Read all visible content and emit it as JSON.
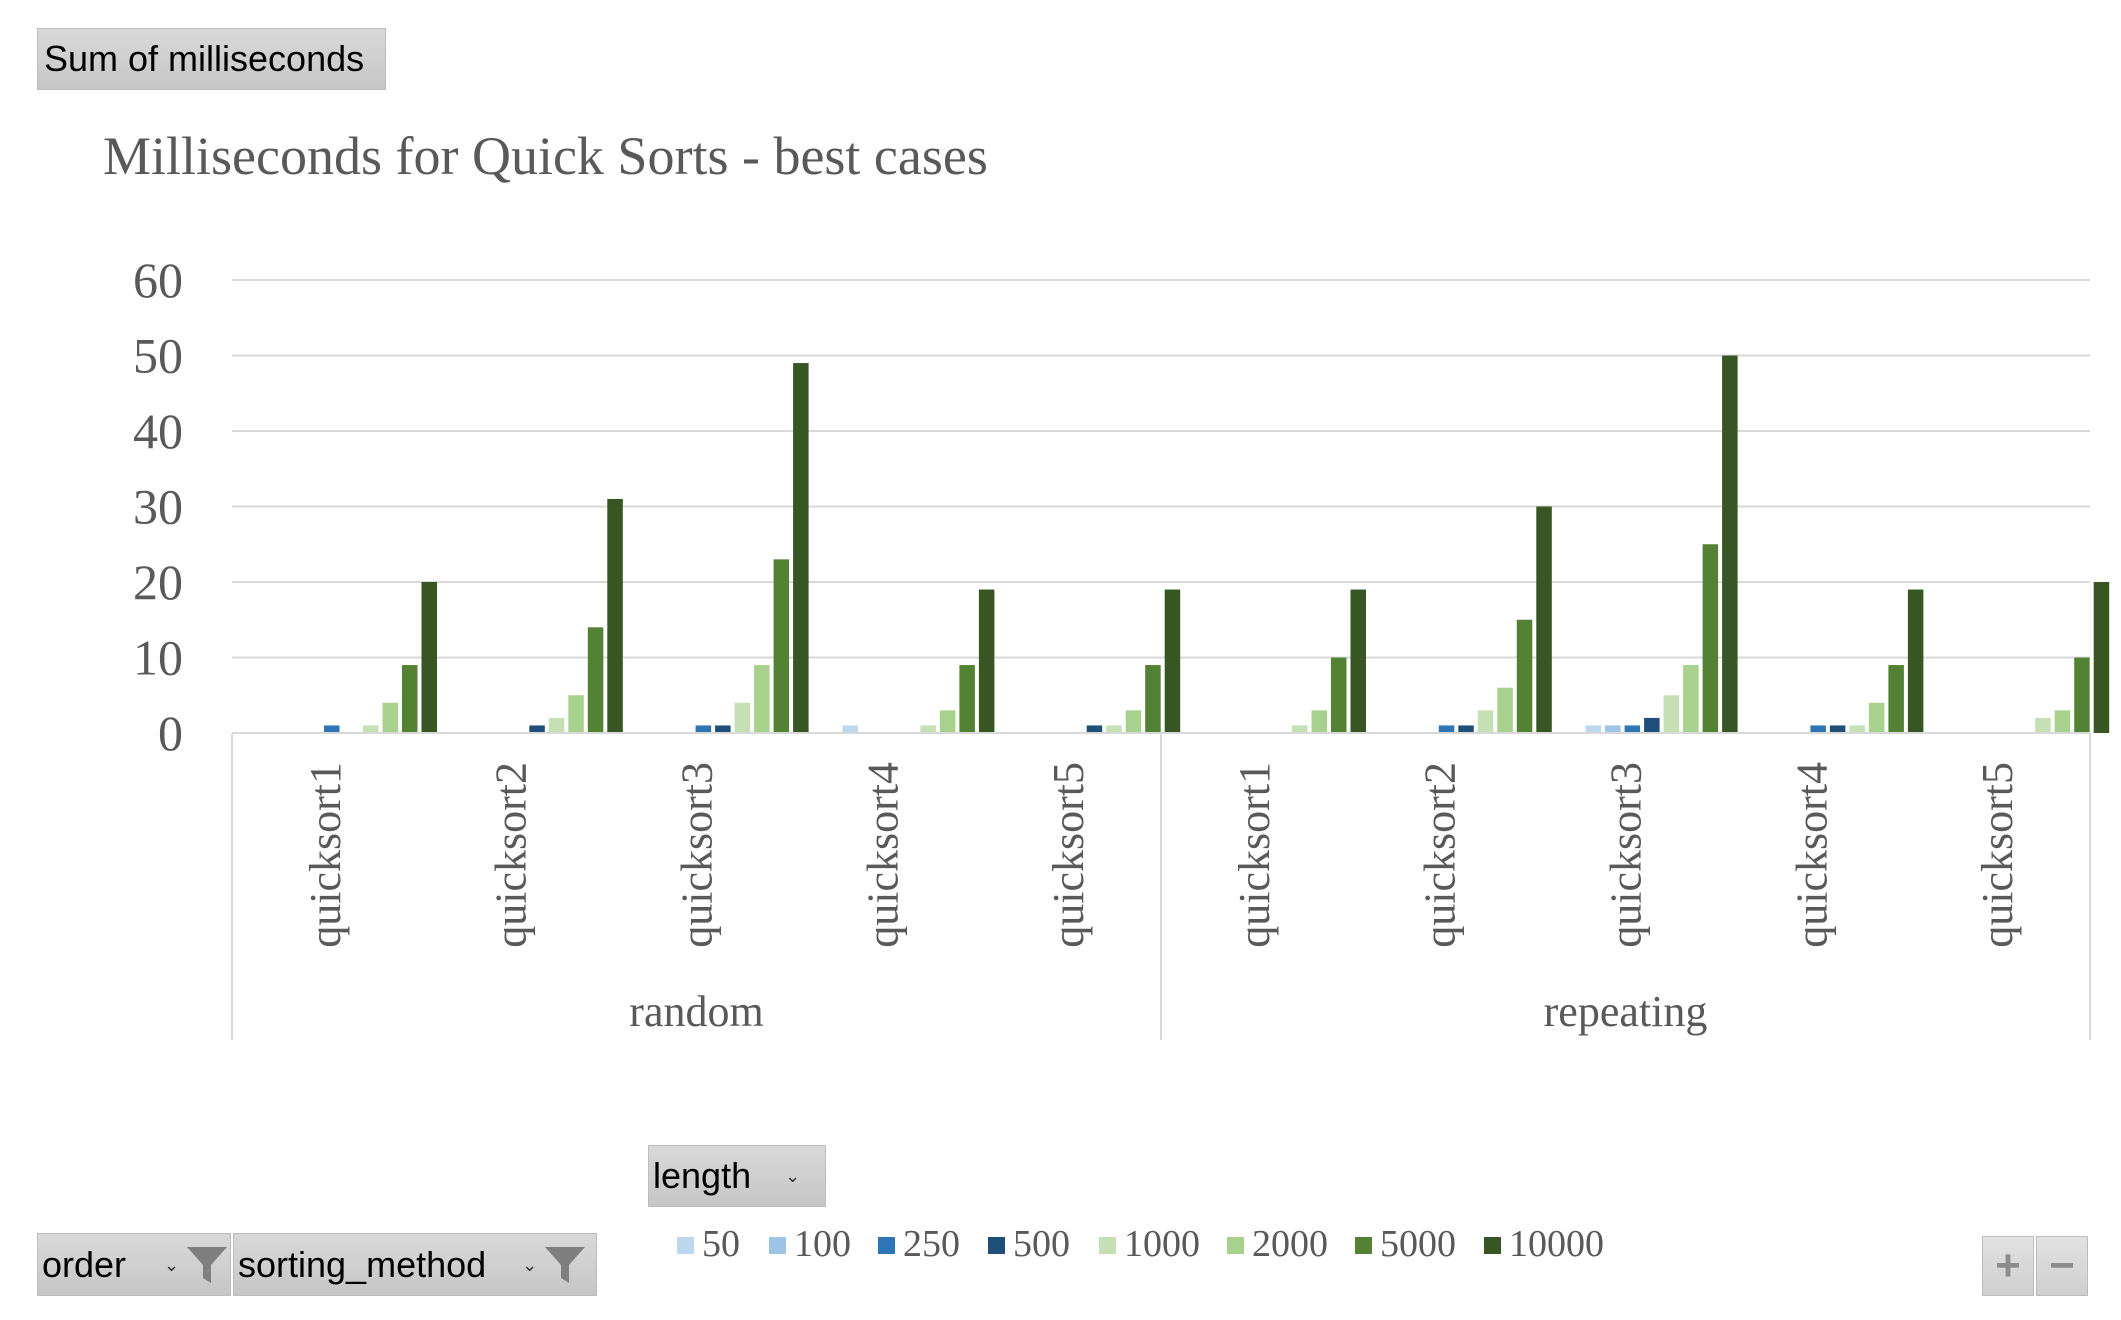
{
  "pivot": {
    "value_field": "Sum of milliseconds",
    "legend_field": "length",
    "axis_fields": [
      "order",
      "sorting_method"
    ]
  },
  "zoom": {
    "plus": "+",
    "minus": "−"
  },
  "icons": {
    "filter": "funnel-icon",
    "dropdown": "chevron-down-icon"
  },
  "colors": {
    "50": "#bdd7ee",
    "100": "#9dc3e6",
    "250": "#2e75b6",
    "500": "#1f4e79",
    "1000": "#c5e0b4",
    "2000": "#a9d18e",
    "5000": "#548235",
    "10000": "#375623"
  },
  "chart_data": {
    "type": "bar",
    "title": "Milliseconds for Quick Sorts - best cases",
    "xlabel": "",
    "ylabel": "",
    "ylim": [
      0,
      60
    ],
    "yticks": [
      0,
      10,
      20,
      30,
      40,
      50,
      60
    ],
    "grid": true,
    "legend_position": "bottom",
    "groups": [
      {
        "label": "random",
        "categories": [
          "quicksort1",
          "quicksort2",
          "quicksort3",
          "quicksort4",
          "quicksort5"
        ]
      },
      {
        "label": "repeating",
        "categories": [
          "quicksort1",
          "quicksort2",
          "quicksort3",
          "quicksort4",
          "quicksort5"
        ]
      }
    ],
    "series": [
      {
        "name": "50",
        "values": [
          0,
          0,
          0,
          1,
          0,
          0,
          0,
          1,
          0,
          0
        ]
      },
      {
        "name": "100",
        "values": [
          0,
          0,
          0,
          0,
          0,
          0,
          0,
          1,
          0,
          0
        ]
      },
      {
        "name": "250",
        "values": [
          1,
          0,
          1,
          0,
          0,
          0,
          1,
          1,
          1,
          0
        ]
      },
      {
        "name": "500",
        "values": [
          0,
          1,
          1,
          0,
          1,
          0,
          1,
          2,
          1,
          0
        ]
      },
      {
        "name": "1000",
        "values": [
          1,
          2,
          4,
          1,
          1,
          1,
          3,
          5,
          1,
          2
        ]
      },
      {
        "name": "2000",
        "values": [
          4,
          5,
          9,
          3,
          3,
          3,
          6,
          9,
          4,
          3
        ]
      },
      {
        "name": "5000",
        "values": [
          9,
          14,
          23,
          9,
          9,
          10,
          15,
          25,
          9,
          10
        ]
      },
      {
        "name": "10000",
        "values": [
          20,
          31,
          49,
          19,
          19,
          19,
          30,
          50,
          19,
          20
        ]
      }
    ]
  }
}
